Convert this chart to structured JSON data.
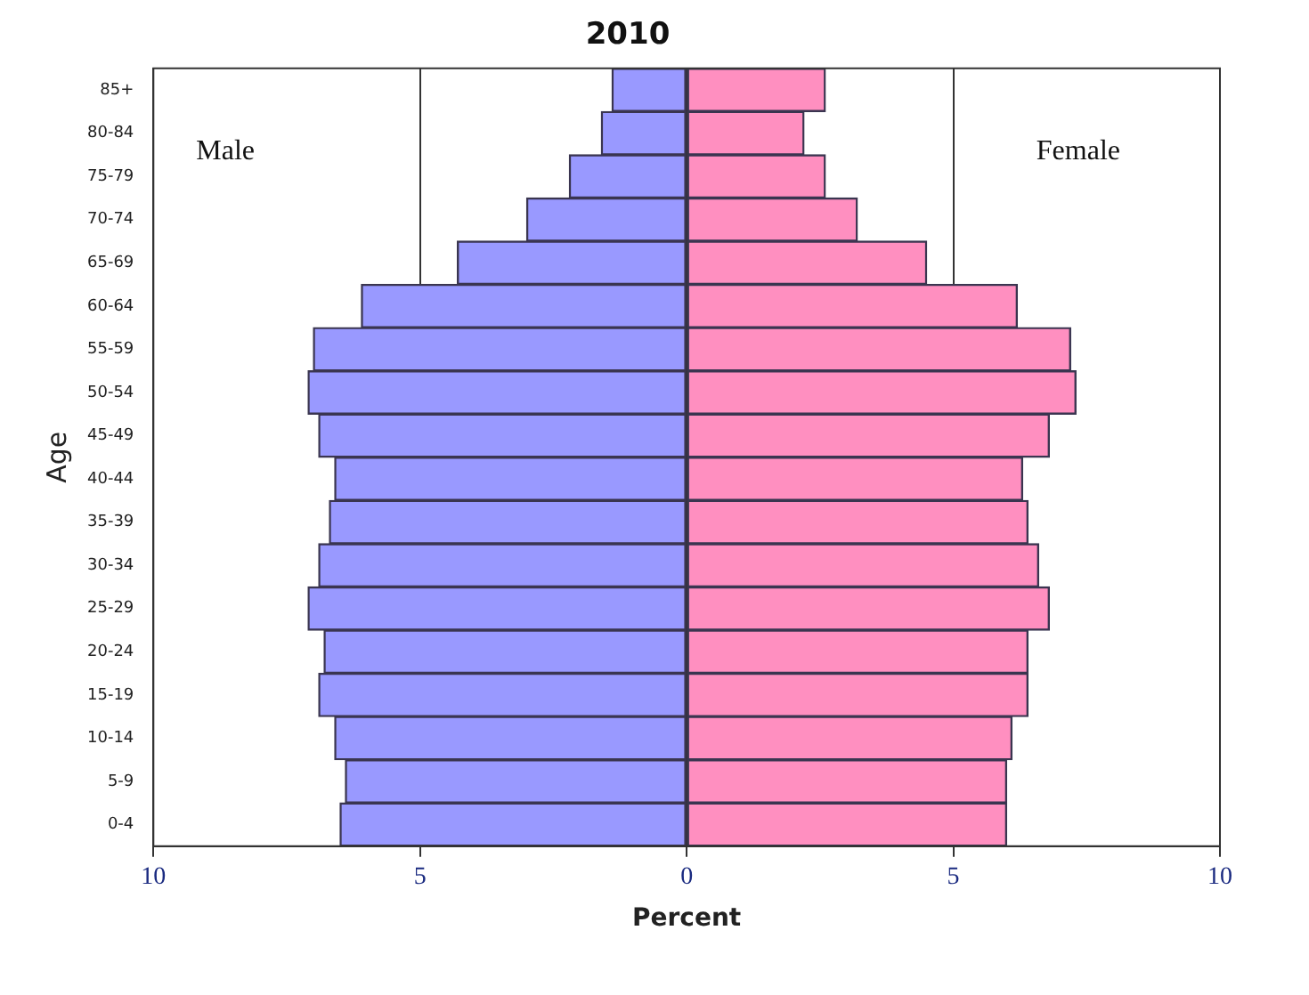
{
  "chart_data": {
    "type": "bar",
    "orientation": "horizontal",
    "stacked": true,
    "title": "2010",
    "xlabel": "Percent",
    "ylabel": "Age",
    "categories": [
      "85+",
      "80-84",
      "75-79",
      "70-74",
      "65-69",
      "60-64",
      "55-59",
      "50-54",
      "45-49",
      "40-44",
      "35-39",
      "30-34",
      "25-29",
      "20-24",
      "15-19",
      "10-14",
      "5-9",
      "0-4"
    ],
    "series": [
      {
        "color": "#9999ff",
        "values": [
          -1.4,
          -1.6,
          -2.2,
          -3.0,
          -4.3,
          -6.1,
          -7.0,
          -7.1,
          -6.9,
          -6.6,
          -6.7,
          -6.9,
          -7.1,
          -6.8,
          -6.9,
          -6.6,
          -6.4,
          -6.5
        ]
      },
      {
        "color": "#ff8fc0",
        "values": [
          2.6,
          2.2,
          2.6,
          3.2,
          4.5,
          6.2,
          7.2,
          7.3,
          6.8,
          6.3,
          6.4,
          6.6,
          6.8,
          6.4,
          6.4,
          6.1,
          6.0,
          6.0
        ]
      }
    ],
    "xlim": [
      -10,
      10
    ],
    "xticks": [
      {
        "value": -10,
        "label": "10"
      },
      {
        "value": -5,
        "label": "5"
      },
      0,
      5,
      10
    ],
    "grid": "x",
    "legend": false,
    "annotations": [
      "Male",
      "Female"
    ]
  }
}
